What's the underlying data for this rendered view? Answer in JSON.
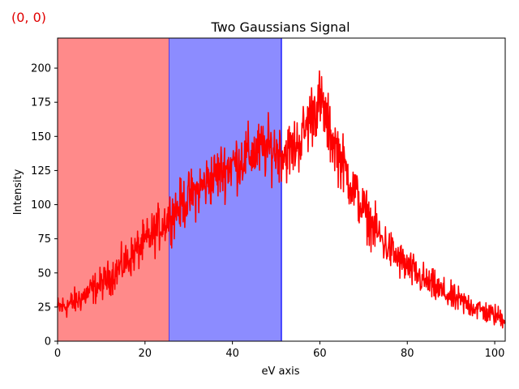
{
  "corner_label": "(0, 0)",
  "chart_data": {
    "type": "line",
    "title": "Two Gaussians Signal",
    "xlabel": "eV axis",
    "ylabel": "Intensity",
    "xlim": [
      0,
      102.4
    ],
    "ylim": [
      0,
      222
    ],
    "xticks": [
      0,
      20,
      40,
      60,
      80,
      100
    ],
    "yticks": [
      0,
      25,
      50,
      75,
      100,
      125,
      150,
      175,
      200
    ],
    "grid": false,
    "regions": [
      {
        "x0": 0,
        "x1": 25.6,
        "fill": "#ff8a8a",
        "edge": "#2020ff"
      },
      {
        "x0": 25.6,
        "x1": 51.2,
        "fill": "#8c8cff",
        "edge": "#2020ff"
      }
    ],
    "series": [
      {
        "color": "#ff0000",
        "x": [
          0,
          2,
          4,
          6,
          8,
          10,
          12,
          14,
          16,
          18,
          20,
          22,
          24,
          26,
          28,
          30,
          32,
          34,
          36,
          38,
          40,
          42,
          44,
          46,
          48,
          50,
          52,
          54,
          56,
          57,
          58,
          59,
          60,
          61,
          62,
          64,
          66,
          68,
          70,
          72,
          74,
          76,
          78,
          80,
          82,
          84,
          86,
          88,
          90,
          92,
          94,
          96,
          98,
          100,
          102
        ],
        "y": [
          24,
          26,
          29,
          33,
          38,
          42,
          47,
          53,
          59,
          66,
          72,
          79,
          86,
          93,
          99,
          105,
          110,
          116,
          121,
          126,
          130,
          133,
          137,
          139,
          141,
          140,
          138,
          141,
          150,
          158,
          166,
          172,
          175,
          167,
          155,
          140,
          124,
          109,
          96,
          85,
          75,
          67,
          60,
          54,
          49,
          44,
          40,
          36,
          32,
          29,
          27,
          24,
          21,
          19,
          17
        ],
        "noise": 14
      }
    ]
  }
}
